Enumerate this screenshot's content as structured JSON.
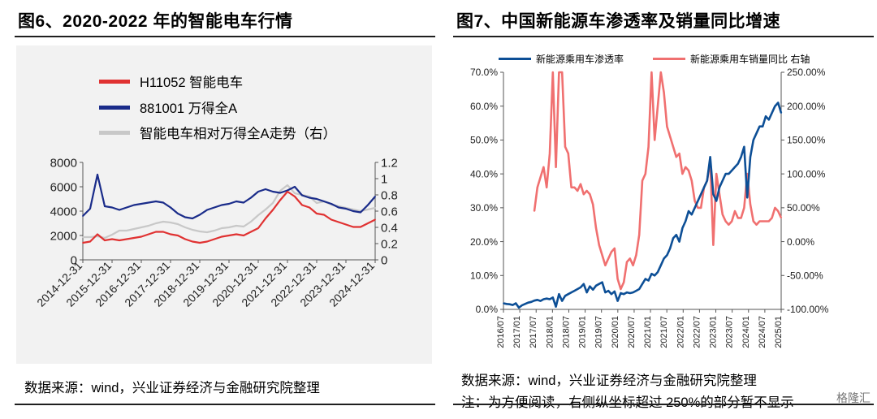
{
  "colors": {
    "red": "#e03232",
    "navy": "#1a2c8a",
    "gray": "#c8c8c8",
    "blue": "#0d4f96",
    "salmon": "#f07070"
  },
  "left_panel": {
    "title": "图6、2020-2022 年的智能电车行情",
    "source": "数据来源：wind，兴业证券经济与金融研究院整理"
  },
  "right_panel": {
    "title": "图7、中国新能源车渗透率及销量同比增速",
    "source": "数据来源：wind，兴业证券经济与金融研究院整理",
    "note": "注：为方便阅读，右侧纵坐标超过 250%的部分暂不显示"
  },
  "watermark": "格隆汇",
  "chart_data": [
    {
      "type": "line",
      "legend_position": "top-left",
      "series": [
        {
          "name": "H11052 智能电车",
          "color": "#e03232",
          "axis": "left",
          "values": [
            1400,
            1500,
            2100,
            1600,
            1700,
            1600,
            1700,
            1800,
            1900,
            2100,
            2300,
            2300,
            2100,
            2000,
            1700,
            1500,
            1400,
            1500,
            1700,
            1900,
            2000,
            2100,
            2000,
            2300,
            2600,
            3400,
            4100,
            4900,
            5600,
            5200,
            4500,
            4300,
            3800,
            3700,
            3300,
            3100,
            2900,
            2700,
            2700,
            3000,
            3300
          ]
        },
        {
          "name": "881001 万得全A",
          "color": "#1a2c8a",
          "axis": "left",
          "values": [
            3600,
            4200,
            7000,
            4400,
            4300,
            4100,
            4300,
            4500,
            4600,
            4700,
            4800,
            4700,
            4300,
            3800,
            3500,
            3400,
            3700,
            4100,
            4300,
            4500,
            4600,
            4800,
            4700,
            5100,
            5600,
            5800,
            5600,
            5500,
            5700,
            6000,
            5300,
            5100,
            5000,
            4800,
            4600,
            4300,
            4200,
            4000,
            3900,
            4500,
            5200
          ]
        },
        {
          "name": "智能电车相对万得全A走势（右）",
          "color": "#c8c8c8",
          "axis": "right",
          "values": [
            0.28,
            0.28,
            0.29,
            0.27,
            0.31,
            0.36,
            0.36,
            0.38,
            0.4,
            0.42,
            0.45,
            0.47,
            0.46,
            0.44,
            0.4,
            0.37,
            0.35,
            0.34,
            0.36,
            0.39,
            0.4,
            0.42,
            0.41,
            0.47,
            0.55,
            0.62,
            0.7,
            0.85,
            0.92,
            0.82,
            0.8,
            0.78,
            0.7,
            0.72,
            0.68,
            0.66,
            0.64,
            0.62,
            0.6,
            0.62,
            0.64
          ]
        }
      ],
      "x_ticks": [
        "2014-12-31",
        "2015-12-31",
        "2016-12-31",
        "2017-12-31",
        "2018-12-31",
        "2019-12-31",
        "2020-12-31",
        "2021-12-31",
        "2022-12-31",
        "2023-12-31",
        "2024-12-31"
      ],
      "y_left": {
        "ticks": [
          "0",
          "2000",
          "4000",
          "6000",
          "8000"
        ],
        "ylim": [
          0,
          8000
        ]
      },
      "y_right": {
        "ticks": [
          "0",
          "0.2",
          "0.4",
          "0.6",
          "0.8",
          "1",
          "1.2"
        ],
        "ylim": [
          0,
          1.2
        ]
      }
    },
    {
      "type": "line",
      "legend_position": "top",
      "series": [
        {
          "name": "新能源乘用车渗透率",
          "color": "#0d4f96",
          "axis": "left",
          "values": [
            0.018,
            0.016,
            0.015,
            0.013,
            0.018,
            0.005,
            0.012,
            0.016,
            0.02,
            0.022,
            0.026,
            0.028,
            0.025,
            0.03,
            0.032,
            0.03,
            0.035,
            0.008,
            0.045,
            0.025,
            0.04,
            0.045,
            0.05,
            0.055,
            0.06,
            0.065,
            0.075,
            0.05,
            0.068,
            0.058,
            0.07,
            0.075,
            0.08,
            0.05,
            0.055,
            0.045,
            0.053,
            0.025,
            0.048,
            0.045,
            0.05,
            0.048,
            0.05,
            0.055,
            0.06,
            0.075,
            0.09,
            0.085,
            0.105,
            0.1,
            0.11,
            0.13,
            0.15,
            0.16,
            0.18,
            0.21,
            0.22,
            0.2,
            0.24,
            0.26,
            0.29,
            0.28,
            0.3,
            0.32,
            0.34,
            0.36,
            0.38,
            0.45,
            0.34,
            0.32,
            0.36,
            0.38,
            0.4,
            0.4,
            0.41,
            0.42,
            0.43,
            0.45,
            0.48,
            0.33,
            0.45,
            0.5,
            0.52,
            0.54,
            0.54,
            0.57,
            0.56,
            0.58,
            0.6,
            0.61,
            0.58
          ]
        },
        {
          "name": "新能源乘用车销量同比 右轴",
          "color": "#f07070",
          "axis": "right",
          "values": [
            null,
            null,
            null,
            null,
            null,
            null,
            null,
            null,
            null,
            null,
            0.45,
            0.8,
            0.95,
            1.1,
            0.8,
            1.3,
            2.5,
            1.1,
            3.0,
            2.5,
            1.4,
            1.3,
            0.8,
            0.8,
            0.75,
            0.85,
            0.7,
            0.75,
            0.7,
            0.55,
            0.2,
            -0.05,
            -0.2,
            -0.35,
            -0.25,
            -0.15,
            -0.1,
            -0.55,
            -0.7,
            -0.6,
            -0.3,
            -0.25,
            -0.35,
            -0.2,
            0.1,
            0.9,
            1.0,
            1.4,
            3.0,
            1.5,
            2.0,
            2.5,
            2.2,
            1.7,
            1.55,
            1.4,
            1.25,
            1.3,
            1.0,
            1.1,
            1.05,
            0.9,
            0.6,
            0.5,
            0.5,
            0.8,
            0.9,
            1.2,
            -0.05,
            1.0,
            0.7,
            0.4,
            0.3,
            0.25,
            0.3,
            0.45,
            0.35,
            0.35,
            0.5,
            1.0,
            0.55,
            0.3,
            0.25,
            0.3,
            0.3,
            0.3,
            0.3,
            0.35,
            0.5,
            0.45,
            0.35
          ]
        }
      ],
      "x_ticks": [
        "2016/07",
        "2017/01",
        "2017/07",
        "2018/01",
        "2018/07",
        "2019/01",
        "2019/07",
        "2020/01",
        "2020/07",
        "2021/01",
        "2021/07",
        "2022/01",
        "2022/07",
        "2023/01",
        "2023/07",
        "2024/01",
        "2024/07",
        "2025/01"
      ],
      "y_left": {
        "ticks": [
          "0.0%",
          "10.0%",
          "20.0%",
          "30.0%",
          "40.0%",
          "50.0%",
          "60.0%",
          "70.0%"
        ],
        "ylim": [
          0,
          0.7
        ]
      },
      "y_right": {
        "ticks": [
          "-100.00%",
          "-50.00%",
          "0.00%",
          "50.00%",
          "100.00%",
          "150.00%",
          "200.00%",
          "250.00%"
        ],
        "ylim": [
          -1.0,
          2.5
        ]
      }
    }
  ]
}
